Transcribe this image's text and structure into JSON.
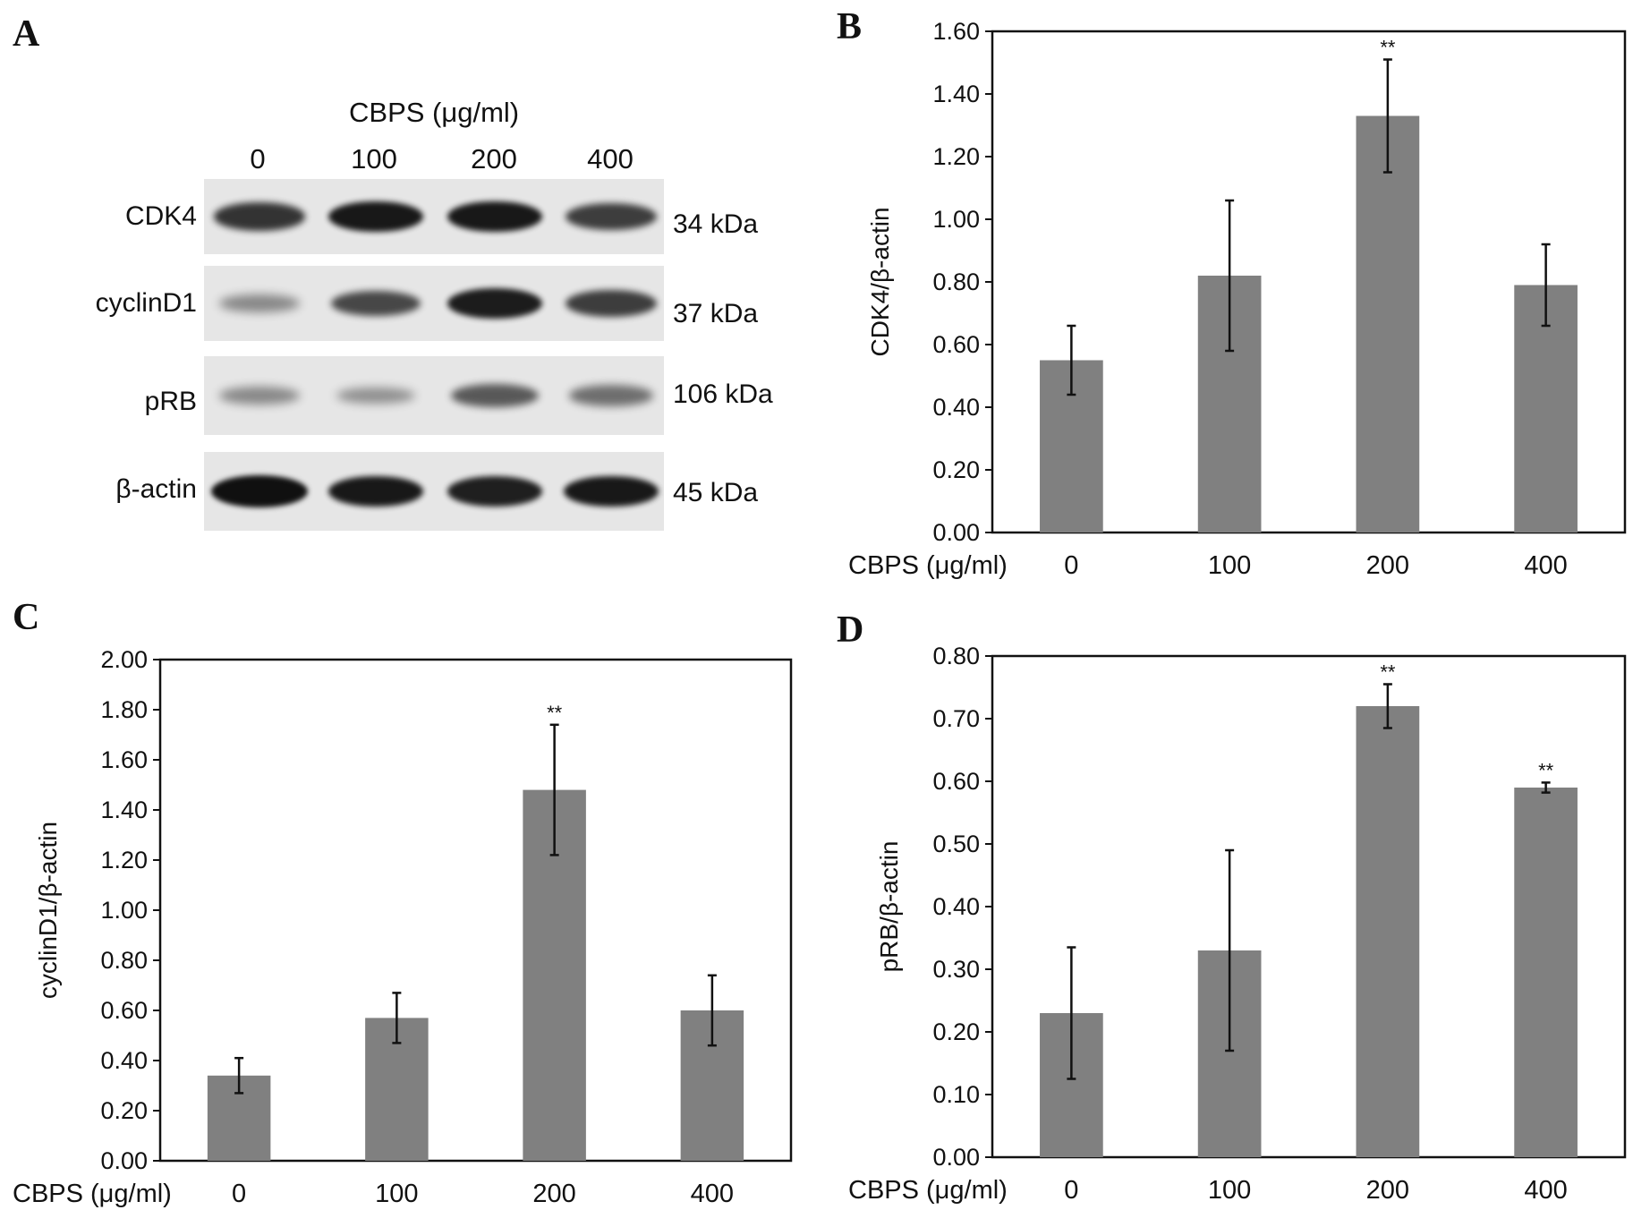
{
  "panels": {
    "a": "A",
    "b": "B",
    "c": "C",
    "d": "D"
  },
  "blot": {
    "title": "CBPS (μg/ml)",
    "lanes": [
      "0",
      "100",
      "200",
      "400"
    ],
    "rows": [
      {
        "protein": "CDK4",
        "kda": "34 kDa",
        "intensity": [
          0.78,
          0.95,
          0.95,
          0.72
        ]
      },
      {
        "protein": "cyclinD1",
        "kda": "37 kDa",
        "intensity": [
          0.25,
          0.65,
          0.92,
          0.72
        ]
      },
      {
        "protein": "pRB",
        "kda": "106 kDa",
        "intensity": [
          0.25,
          0.2,
          0.55,
          0.42
        ]
      },
      {
        "protein": "β-actin",
        "kda": "45 kDa",
        "intensity": [
          1.0,
          0.95,
          0.9,
          0.95
        ]
      }
    ],
    "colors": {
      "band": "#101010",
      "background": "#e6e6e6"
    }
  },
  "chart_data": [
    {
      "type": "bar",
      "id": "B",
      "categories": [
        "0",
        "100",
        "200",
        "400"
      ],
      "values": [
        0.55,
        0.82,
        1.33,
        0.79
      ],
      "errors": [
        0.11,
        0.24,
        0.18,
        0.13
      ],
      "significance": [
        "",
        "",
        "**",
        ""
      ],
      "xlabel": "CBPS (μg/ml)",
      "ylabel": "CDK4/β-actin",
      "ylim": [
        0,
        1.6
      ],
      "yticks": [
        "0.00",
        "0.20",
        "0.40",
        "0.60",
        "0.80",
        "1.00",
        "1.20",
        "1.40",
        "1.60"
      ],
      "bar_color": "#808080"
    },
    {
      "type": "bar",
      "id": "C",
      "categories": [
        "0",
        "100",
        "200",
        "400"
      ],
      "values": [
        0.34,
        0.57,
        1.48,
        0.6
      ],
      "errors": [
        0.07,
        0.1,
        0.26,
        0.14
      ],
      "significance": [
        "",
        "",
        "**",
        ""
      ],
      "xlabel": "CBPS (μg/ml)",
      "ylabel": "cyclinD1/β-actin",
      "ylim": [
        0,
        2.0
      ],
      "yticks": [
        "0.00",
        "0.20",
        "0.40",
        "0.60",
        "0.80",
        "1.00",
        "1.20",
        "1.40",
        "1.60",
        "1.80",
        "2.00"
      ],
      "bar_color": "#808080"
    },
    {
      "type": "bar",
      "id": "D",
      "categories": [
        "0",
        "100",
        "200",
        "400"
      ],
      "values": [
        0.23,
        0.33,
        0.72,
        0.59
      ],
      "errors": [
        0.105,
        0.16,
        0.035,
        0.008
      ],
      "significance": [
        "",
        "",
        "**",
        "**"
      ],
      "xlabel": "CBPS (μg/ml)",
      "ylabel": "pRB/β-actin",
      "ylim": [
        0,
        0.8
      ],
      "yticks": [
        "0.00",
        "0.10",
        "0.20",
        "0.30",
        "0.40",
        "0.50",
        "0.60",
        "0.70",
        "0.80"
      ],
      "bar_color": "#808080"
    }
  ]
}
